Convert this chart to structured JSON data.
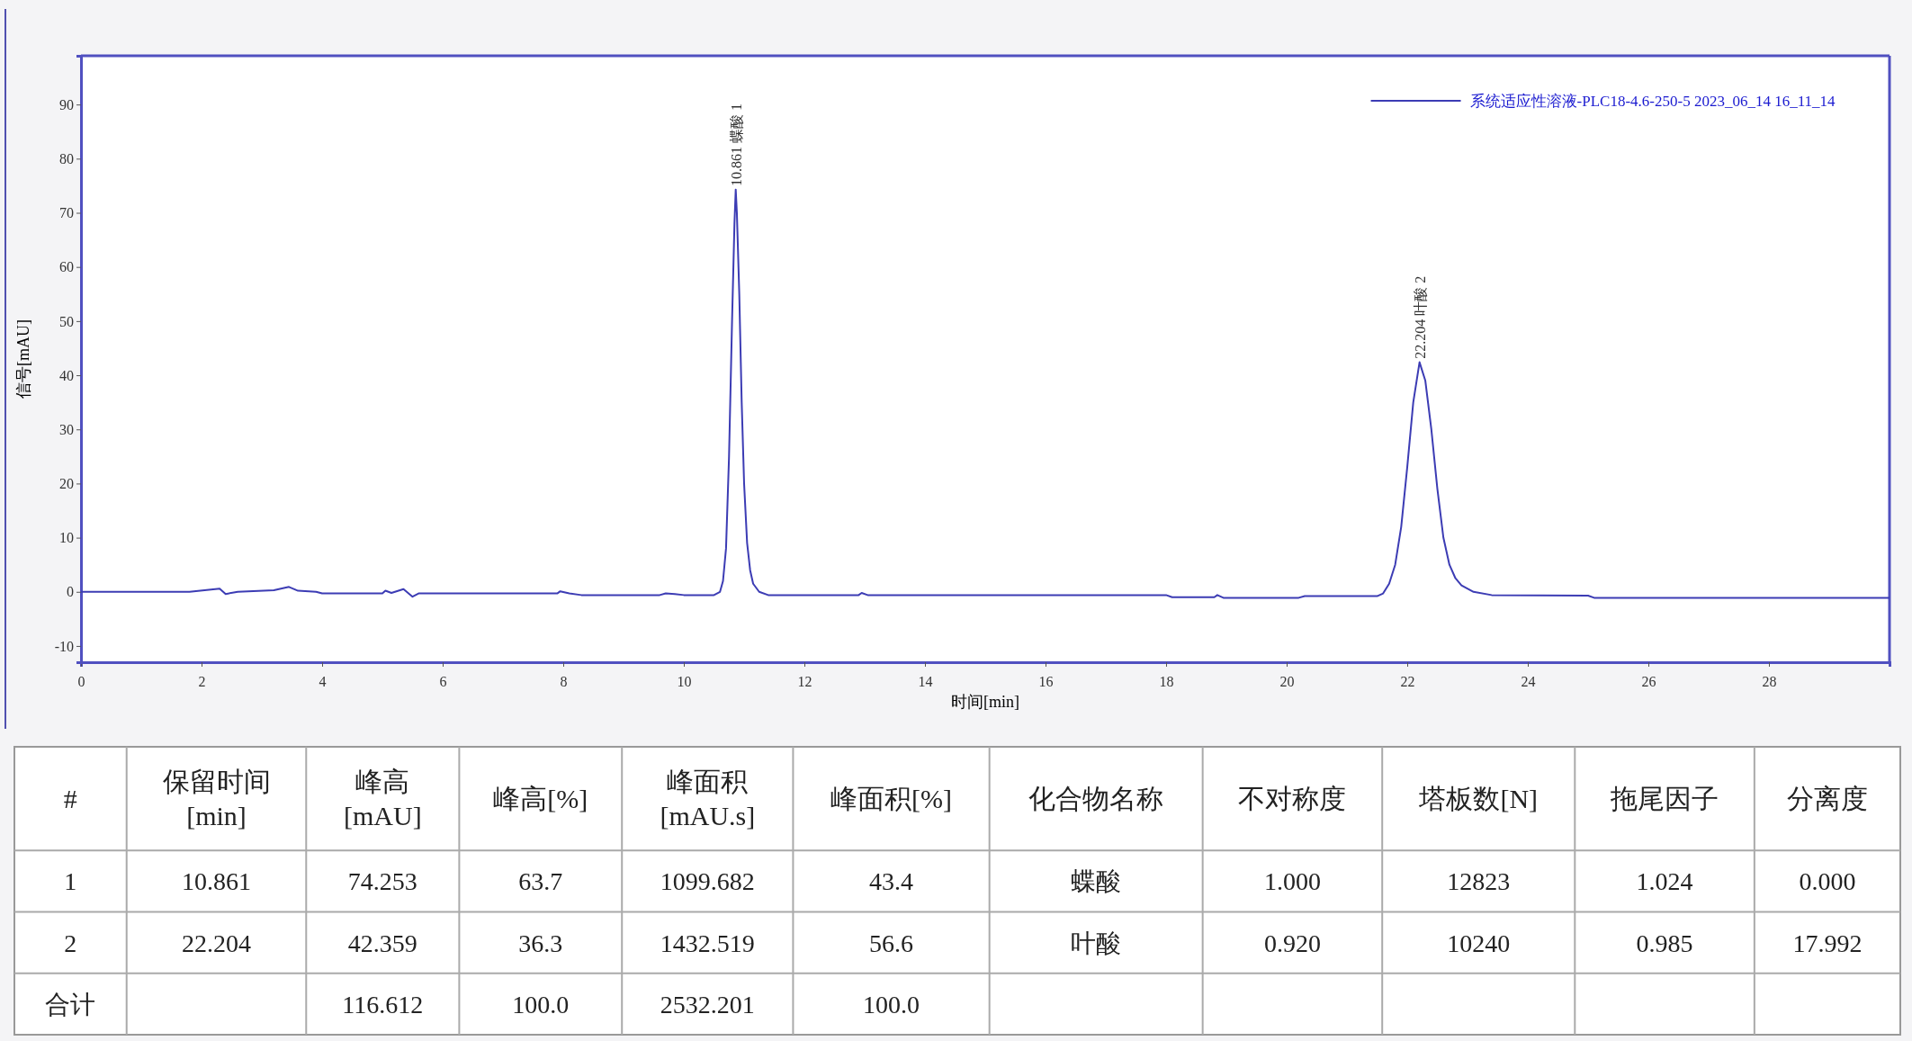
{
  "chart_data": [
    {
      "type": "line",
      "xlabel": "时间[min]",
      "ylabel": "信号[mAU]",
      "xlim": [
        0,
        30
      ],
      "ylim": [
        -13,
        99
      ],
      "xticks": [
        0,
        2,
        4,
        6,
        8,
        10,
        12,
        14,
        16,
        18,
        20,
        22,
        24,
        26,
        28
      ],
      "yticks": [
        -10,
        0,
        10,
        20,
        30,
        40,
        50,
        60,
        70,
        80,
        90
      ],
      "grid": false,
      "legend": "top right",
      "marker": "none",
      "line_style": "solid",
      "annotations": [
        {
          "text": "10.861  蝶酸  1",
          "x": 10.861,
          "y": 74.253
        },
        {
          "text": "22.204  叶酸  2",
          "x": 22.204,
          "y": 42.359
        }
      ],
      "series": [
        {
          "name": "系统适应性溶液-PLC18-4.6-250-5 2023_06_14 16_11_14",
          "color": "#3c3cb4",
          "x": [
            0,
            1.8,
            2.3,
            2.4,
            2.6,
            3.2,
            3.45,
            3.6,
            3.9,
            4.0,
            5.0,
            5.05,
            5.15,
            5.35,
            5.5,
            5.6,
            7.9,
            7.95,
            8.1,
            8.3,
            9.6,
            9.7,
            9.85,
            10.0,
            10.5,
            10.6,
            10.65,
            10.7,
            10.75,
            10.8,
            10.84,
            10.861,
            10.88,
            10.92,
            10.96,
            11.0,
            11.05,
            11.1,
            11.15,
            11.25,
            11.4,
            12.9,
            12.95,
            13.05,
            18.0,
            18.1,
            18.8,
            18.85,
            18.95,
            20.2,
            20.3,
            21.5,
            21.6,
            21.7,
            21.8,
            21.9,
            22.0,
            22.1,
            22.204,
            22.3,
            22.4,
            22.5,
            22.6,
            22.7,
            22.8,
            22.9,
            23.1,
            23.4,
            25.0,
            25.1,
            30
          ],
          "values": [
            0,
            0,
            0.6,
            -0.4,
            0,
            0.3,
            0.9,
            0.2,
            0,
            -0.3,
            -0.3,
            0.2,
            -0.2,
            0.5,
            -0.9,
            -0.3,
            -0.3,
            0.1,
            -0.3,
            -0.6,
            -0.6,
            -0.3,
            -0.4,
            -0.6,
            -0.6,
            0,
            2,
            8,
            25,
            50,
            68,
            74.3,
            70,
            55,
            35,
            20,
            9,
            4,
            1.5,
            0,
            -0.6,
            -0.6,
            -0.2,
            -0.6,
            -0.6,
            -1.0,
            -1.0,
            -0.6,
            -1.1,
            -1.1,
            -0.8,
            -0.8,
            -0.3,
            1.5,
            5,
            12,
            23,
            35,
            42.4,
            39,
            30,
            19,
            10,
            5,
            2.5,
            1.2,
            0,
            -0.6,
            -0.7,
            -1.1,
            -1.1
          ]
        }
      ]
    },
    {
      "type": "other",
      "categories": [
        "#",
        "保留时间 [min]",
        "峰高 [mAU]",
        "峰高[%]",
        "峰面积 [mAU.s]",
        "峰面积[%]",
        "化合物名称",
        "不对称度",
        "塔板数[N]",
        "拖尾因子",
        "分离度"
      ],
      "cell_labels": [
        [
          "1",
          "10.861",
          "74.253",
          "63.7",
          "1099.682",
          "43.4",
          "蝶酸",
          "1.000",
          "12823",
          "1.024",
          "0.000"
        ],
        [
          "2",
          "22.204",
          "42.359",
          "36.3",
          "1432.519",
          "56.6",
          "叶酸",
          "0.920",
          "10240",
          "0.985",
          "17.992"
        ],
        [
          "合计",
          null,
          "116.612",
          "100.0",
          "2532.201",
          "100.0",
          null,
          null,
          null,
          null,
          null
        ]
      ]
    }
  ]
}
